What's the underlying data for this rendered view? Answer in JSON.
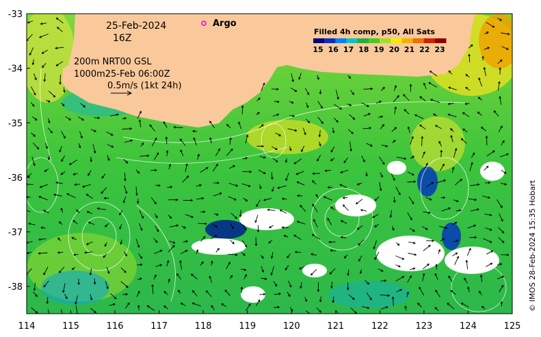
{
  "map": {
    "date": "25-Feb-2024",
    "hour": "16Z",
    "legend_title": "Filled 4h comp, p50, All Sats",
    "legend_ticks": [
      "15",
      "16",
      "17",
      "18",
      "19",
      "20",
      "21",
      "22",
      "23"
    ],
    "legend_colors": [
      "#000080",
      "#0030c8",
      "#0080ff",
      "#00c8c8",
      "#20b040",
      "#40d020",
      "#a0e020",
      "#f0f000",
      "#f8b000",
      "#f07000",
      "#d02000",
      "#900000"
    ],
    "argo_label": "Argo",
    "argo_color": "#e000e0",
    "current_info_1": "200m  NRT00 GSL",
    "current_info_2": "1000m25-Feb 06:00Z",
    "current_info_3": "0.5m/s (1kt 24h)",
    "credit": "© IMOS 28-Feb-2024 15:35 Hobart",
    "land_color": "#f9c99b",
    "x_ticks": [
      114,
      115,
      116,
      117,
      118,
      119,
      120,
      121,
      122,
      123,
      124,
      125
    ],
    "y_ticks": [
      -33,
      -34,
      -35,
      -36,
      -37,
      -38
    ],
    "lon_range": [
      114,
      125
    ],
    "lat_range": [
      -38.5,
      -33
    ]
  }
}
